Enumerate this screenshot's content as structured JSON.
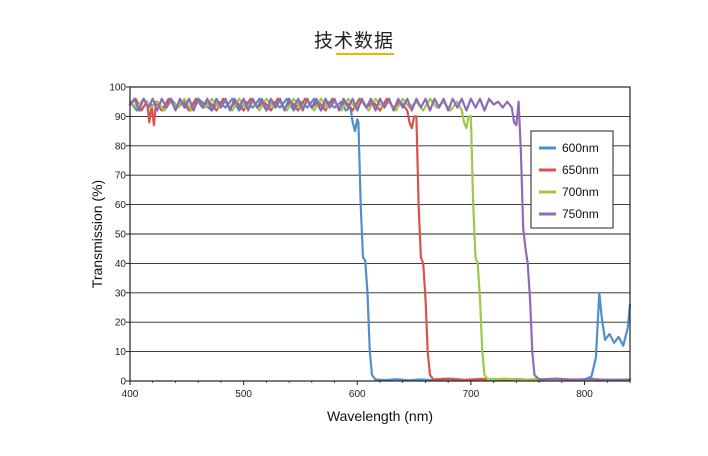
{
  "page": {
    "title": "技术数据",
    "accent_color": "#f0b400"
  },
  "chart_data": {
    "type": "line",
    "xlabel": "Wavelength (nm)",
    "ylabel": "Transmission (%)",
    "xlim": [
      400,
      840
    ],
    "ylim": [
      0,
      100
    ],
    "x_ticks": [
      400,
      500,
      600,
      700,
      800
    ],
    "y_ticks": [
      0,
      10,
      20,
      30,
      40,
      50,
      60,
      70,
      80,
      90,
      100
    ],
    "grid": "horizontal",
    "legend_position": "right",
    "series": [
      {
        "name": "600nm",
        "color": "#4f8fca",
        "points": [
          [
            400,
            95
          ],
          [
            406,
            92
          ],
          [
            412,
            96
          ],
          [
            418,
            93
          ],
          [
            424,
            95
          ],
          [
            430,
            92
          ],
          [
            436,
            96
          ],
          [
            442,
            93
          ],
          [
            448,
            95
          ],
          [
            454,
            92
          ],
          [
            460,
            96
          ],
          [
            466,
            94
          ],
          [
            472,
            92
          ],
          [
            478,
            95
          ],
          [
            484,
            93
          ],
          [
            490,
            96
          ],
          [
            496,
            92
          ],
          [
            502,
            95
          ],
          [
            508,
            93
          ],
          [
            514,
            96
          ],
          [
            520,
            92
          ],
          [
            526,
            95
          ],
          [
            532,
            93
          ],
          [
            538,
            96
          ],
          [
            544,
            92
          ],
          [
            550,
            95
          ],
          [
            556,
            93
          ],
          [
            562,
            96
          ],
          [
            568,
            92
          ],
          [
            574,
            95
          ],
          [
            580,
            93
          ],
          [
            586,
            95
          ],
          [
            590,
            92
          ],
          [
            594,
            93
          ],
          [
            596,
            88
          ],
          [
            598,
            85
          ],
          [
            600,
            89
          ],
          [
            601,
            88
          ],
          [
            603,
            60
          ],
          [
            605,
            42
          ],
          [
            607,
            41
          ],
          [
            609,
            30
          ],
          [
            611,
            10
          ],
          [
            613,
            2
          ],
          [
            616,
            0.5
          ],
          [
            625,
            0.3
          ],
          [
            635,
            0.6
          ],
          [
            645,
            0.2
          ],
          [
            655,
            0.5
          ],
          [
            665,
            0.3
          ],
          [
            680,
            0.6
          ],
          [
            695,
            0.3
          ],
          [
            710,
            0.5
          ],
          [
            725,
            0.3
          ],
          [
            740,
            0.6
          ],
          [
            755,
            0.3
          ],
          [
            770,
            0.5
          ],
          [
            785,
            0.2
          ],
          [
            800,
            0.5
          ],
          [
            806,
            1.5
          ],
          [
            810,
            8
          ],
          [
            813,
            30
          ],
          [
            815,
            22
          ],
          [
            818,
            14
          ],
          [
            822,
            16
          ],
          [
            826,
            13
          ],
          [
            830,
            15
          ],
          [
            834,
            12
          ],
          [
            838,
            18
          ],
          [
            840,
            26
          ]
        ]
      },
      {
        "name": "650nm",
        "color": "#d9534a",
        "points": [
          [
            400,
            94
          ],
          [
            405,
            96
          ],
          [
            410,
            92
          ],
          [
            415,
            95
          ],
          [
            417,
            88
          ],
          [
            419,
            94
          ],
          [
            421,
            87
          ],
          [
            423,
            95
          ],
          [
            428,
            92
          ],
          [
            434,
            96
          ],
          [
            440,
            93
          ],
          [
            446,
            95
          ],
          [
            452,
            92
          ],
          [
            458,
            96
          ],
          [
            464,
            93
          ],
          [
            470,
            95
          ],
          [
            476,
            92
          ],
          [
            482,
            96
          ],
          [
            488,
            93
          ],
          [
            494,
            95
          ],
          [
            500,
            92
          ],
          [
            506,
            96
          ],
          [
            512,
            93
          ],
          [
            518,
            95
          ],
          [
            524,
            92
          ],
          [
            530,
            96
          ],
          [
            536,
            93
          ],
          [
            542,
            95
          ],
          [
            548,
            92
          ],
          [
            554,
            96
          ],
          [
            560,
            93
          ],
          [
            566,
            95
          ],
          [
            572,
            92
          ],
          [
            578,
            96
          ],
          [
            584,
            93
          ],
          [
            590,
            95
          ],
          [
            596,
            92
          ],
          [
            602,
            96
          ],
          [
            608,
            93
          ],
          [
            614,
            95
          ],
          [
            620,
            92
          ],
          [
            626,
            96
          ],
          [
            632,
            93
          ],
          [
            638,
            95
          ],
          [
            644,
            92
          ],
          [
            646,
            88
          ],
          [
            648,
            86
          ],
          [
            650,
            90
          ],
          [
            652,
            90
          ],
          [
            654,
            60
          ],
          [
            656,
            42
          ],
          [
            658,
            40
          ],
          [
            660,
            28
          ],
          [
            662,
            10
          ],
          [
            664,
            2
          ],
          [
            667,
            0.5
          ],
          [
            680,
            0.8
          ],
          [
            695,
            0.4
          ],
          [
            710,
            0.7
          ],
          [
            725,
            0.3
          ],
          [
            740,
            0.6
          ],
          [
            760,
            0.3
          ],
          [
            780,
            0.6
          ],
          [
            800,
            0.3
          ],
          [
            820,
            0.5
          ],
          [
            840,
            0.3
          ]
        ]
      },
      {
        "name": "700nm",
        "color": "#9dc94a",
        "points": [
          [
            400,
            95
          ],
          [
            406,
            93
          ],
          [
            412,
            96
          ],
          [
            418,
            93
          ],
          [
            424,
            95
          ],
          [
            430,
            92
          ],
          [
            436,
            95
          ],
          [
            442,
            93
          ],
          [
            448,
            96
          ],
          [
            454,
            92
          ],
          [
            460,
            95
          ],
          [
            466,
            93
          ],
          [
            472,
            96
          ],
          [
            478,
            93
          ],
          [
            484,
            95
          ],
          [
            490,
            92
          ],
          [
            496,
            96
          ],
          [
            502,
            93
          ],
          [
            508,
            95
          ],
          [
            514,
            92
          ],
          [
            520,
            96
          ],
          [
            526,
            93
          ],
          [
            532,
            95
          ],
          [
            538,
            92
          ],
          [
            544,
            96
          ],
          [
            550,
            93
          ],
          [
            556,
            95
          ],
          [
            562,
            92
          ],
          [
            568,
            96
          ],
          [
            574,
            93
          ],
          [
            580,
            95
          ],
          [
            586,
            92
          ],
          [
            592,
            96
          ],
          [
            598,
            93
          ],
          [
            604,
            95
          ],
          [
            610,
            92
          ],
          [
            616,
            96
          ],
          [
            622,
            93
          ],
          [
            628,
            95
          ],
          [
            634,
            92
          ],
          [
            640,
            96
          ],
          [
            646,
            93
          ],
          [
            652,
            95
          ],
          [
            658,
            92
          ],
          [
            664,
            96
          ],
          [
            670,
            93
          ],
          [
            676,
            95
          ],
          [
            682,
            92
          ],
          [
            688,
            95
          ],
          [
            692,
            92
          ],
          [
            694,
            88
          ],
          [
            696,
            86
          ],
          [
            698,
            90
          ],
          [
            700,
            90
          ],
          [
            702,
            60
          ],
          [
            704,
            42
          ],
          [
            706,
            40
          ],
          [
            708,
            28
          ],
          [
            710,
            10
          ],
          [
            712,
            2
          ],
          [
            715,
            0.5
          ],
          [
            730,
            0.8
          ],
          [
            745,
            0.4
          ],
          [
            760,
            0.7
          ],
          [
            775,
            0.3
          ],
          [
            790,
            0.6
          ],
          [
            805,
            0.3
          ],
          [
            820,
            0.5
          ],
          [
            840,
            0.3
          ]
        ]
      },
      {
        "name": "750nm",
        "color": "#8e6bb5",
        "points": [
          [
            400,
            94
          ],
          [
            404,
            96
          ],
          [
            408,
            92
          ],
          [
            412,
            96
          ],
          [
            416,
            93
          ],
          [
            420,
            96
          ],
          [
            424,
            92
          ],
          [
            428,
            96
          ],
          [
            432,
            93
          ],
          [
            436,
            96
          ],
          [
            440,
            92
          ],
          [
            444,
            96
          ],
          [
            448,
            93
          ],
          [
            452,
            96
          ],
          [
            456,
            92
          ],
          [
            460,
            96
          ],
          [
            464,
            93
          ],
          [
            468,
            96
          ],
          [
            472,
            92
          ],
          [
            476,
            96
          ],
          [
            480,
            93
          ],
          [
            484,
            96
          ],
          [
            488,
            92
          ],
          [
            492,
            96
          ],
          [
            496,
            93
          ],
          [
            500,
            96
          ],
          [
            504,
            92
          ],
          [
            508,
            96
          ],
          [
            512,
            93
          ],
          [
            516,
            96
          ],
          [
            520,
            92
          ],
          [
            524,
            96
          ],
          [
            528,
            93
          ],
          [
            532,
            96
          ],
          [
            536,
            92
          ],
          [
            540,
            96
          ],
          [
            544,
            93
          ],
          [
            548,
            96
          ],
          [
            552,
            92
          ],
          [
            556,
            96
          ],
          [
            560,
            93
          ],
          [
            564,
            96
          ],
          [
            568,
            92
          ],
          [
            572,
            96
          ],
          [
            576,
            93
          ],
          [
            580,
            96
          ],
          [
            584,
            92
          ],
          [
            588,
            96
          ],
          [
            592,
            93
          ],
          [
            596,
            96
          ],
          [
            600,
            92
          ],
          [
            604,
            96
          ],
          [
            608,
            93
          ],
          [
            612,
            96
          ],
          [
            616,
            92
          ],
          [
            620,
            96
          ],
          [
            624,
            93
          ],
          [
            628,
            96
          ],
          [
            632,
            92
          ],
          [
            636,
            96
          ],
          [
            640,
            93
          ],
          [
            644,
            96
          ],
          [
            648,
            92
          ],
          [
            652,
            96
          ],
          [
            656,
            93
          ],
          [
            660,
            96
          ],
          [
            664,
            92
          ],
          [
            668,
            96
          ],
          [
            672,
            93
          ],
          [
            676,
            96
          ],
          [
            680,
            92
          ],
          [
            684,
            96
          ],
          [
            688,
            93
          ],
          [
            692,
            96
          ],
          [
            696,
            92
          ],
          [
            700,
            96
          ],
          [
            704,
            93
          ],
          [
            708,
            96
          ],
          [
            712,
            92
          ],
          [
            716,
            96
          ],
          [
            720,
            94
          ],
          [
            724,
            95
          ],
          [
            728,
            93
          ],
          [
            732,
            95
          ],
          [
            736,
            93
          ],
          [
            738,
            88
          ],
          [
            740,
            87
          ],
          [
            742,
            95
          ],
          [
            744,
            78
          ],
          [
            746,
            52
          ],
          [
            748,
            45
          ],
          [
            750,
            40
          ],
          [
            752,
            28
          ],
          [
            754,
            10
          ],
          [
            756,
            2
          ],
          [
            760,
            0.5
          ],
          [
            775,
            0.8
          ],
          [
            790,
            0.4
          ],
          [
            805,
            0.7
          ],
          [
            820,
            0.3
          ],
          [
            840,
            0.5
          ]
        ]
      }
    ]
  }
}
